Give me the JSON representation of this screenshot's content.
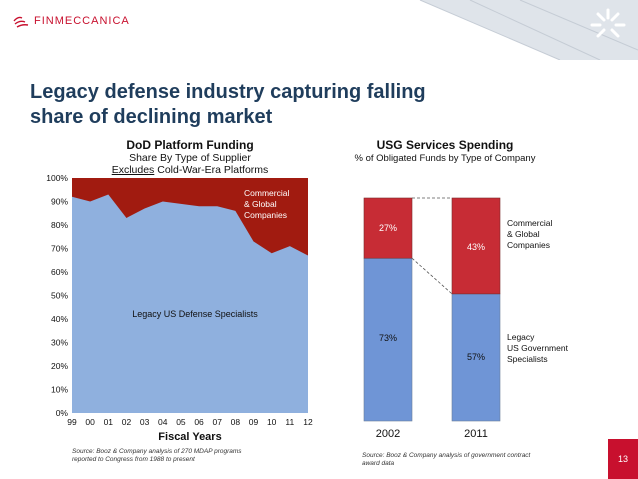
{
  "brand": {
    "name": "FINMECCANICA"
  },
  "slide": {
    "title_line1": "Legacy defense industry capturing falling",
    "title_line2": "share of declining market",
    "page": "13"
  },
  "colors": {
    "legacy": "#8fb0de",
    "commercial": "#a11b10",
    "legacy_bar": "#6f95d6",
    "commercial_bar": "#c72c35",
    "title": "#1f3d5c",
    "brand": "#c8102e"
  },
  "chart_data": [
    {
      "type": "area",
      "title": "DoD Platform Funding",
      "subtitle_line1": "Share By Type of Supplier",
      "subtitle_prefix": "Excludes",
      "subtitle_rest": " Cold-War-Era Platforms",
      "xlabel": "Fiscal Years",
      "x": [
        "99",
        "00",
        "01",
        "02",
        "03",
        "04",
        "05",
        "06",
        "07",
        "08",
        "09",
        "10",
        "11",
        "12"
      ],
      "ylim": [
        0,
        100
      ],
      "yticks": [
        "0%",
        "10%",
        "20%",
        "30%",
        "40%",
        "50%",
        "60%",
        "70%",
        "80%",
        "90%",
        "100%"
      ],
      "series": [
        {
          "name": "Legacy US Defense Specialists",
          "values": [
            92,
            90,
            93,
            83,
            87,
            90,
            89,
            88,
            88,
            86,
            73,
            68,
            71,
            67
          ]
        },
        {
          "name": "Commercial & Global Companies",
          "values": [
            8,
            10,
            7,
            17,
            13,
            10,
            11,
            12,
            12,
            14,
            27,
            32,
            29,
            33
          ]
        }
      ],
      "labels": {
        "commercial_line1": "Commercial",
        "commercial_line2": "& Global",
        "commercial_line3": "Companies",
        "legacy": "Legacy US Defense Specialists"
      },
      "source_line1": "Source: Booz & Company analysis of 270 MDAP programs",
      "source_line2": "reported to Congress from 1988 to present"
    },
    {
      "type": "bar",
      "stacked": true,
      "title": "USG Services Spending",
      "subtitle": "% of Obligated Funds by Type of Company",
      "categories": [
        "2002",
        "2011"
      ],
      "series": [
        {
          "name": "Legacy US Government Specialists",
          "values": [
            73,
            57
          ],
          "labels": [
            "73%",
            "57%"
          ]
        },
        {
          "name": "Commercial & Global Companies",
          "values": [
            27,
            43
          ],
          "labels": [
            "27%",
            "43%"
          ]
        }
      ],
      "legend": {
        "commercial_line1": "Commercial",
        "commercial_line2": "& Global",
        "commercial_line3": "Companies",
        "legacy_line1": "Legacy",
        "legacy_line2": "US Government",
        "legacy_line3": "Specialists"
      },
      "source_line1": "Source: Booz & Company analysis of government contract",
      "source_line2": "award data"
    }
  ]
}
